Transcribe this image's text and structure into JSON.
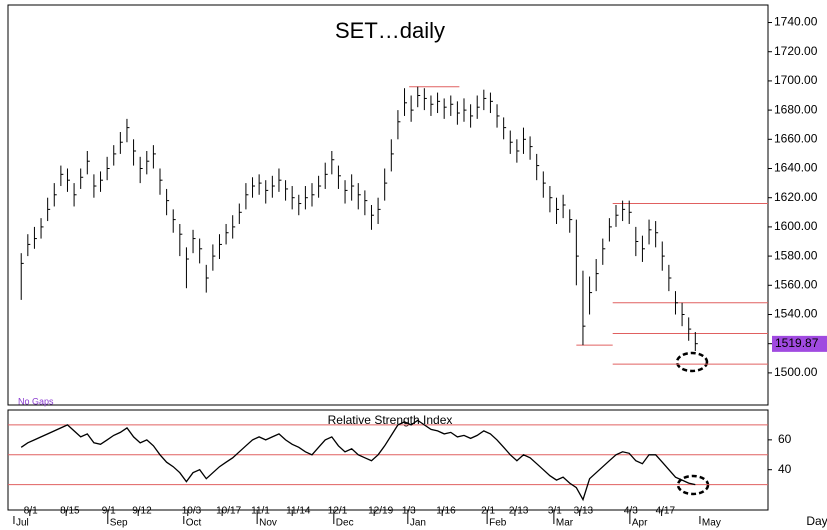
{
  "chart_data": [
    {
      "type": "ohlc",
      "title": "SET…daily",
      "note": "No Gaps",
      "color": "#000000",
      "level_color": "#e06060",
      "xlim": [
        -2,
        113
      ],
      "ylim": [
        1478,
        1752
      ],
      "yticks": [
        {
          "value": 1500,
          "label": "1500.00"
        },
        {
          "value": 1520,
          "label": "1520.00"
        },
        {
          "value": 1540,
          "label": "1540.00"
        },
        {
          "value": 1560,
          "label": "1560.00"
        },
        {
          "value": 1580,
          "label": "1580.00"
        },
        {
          "value": 1600,
          "label": "1600.00"
        },
        {
          "value": 1620,
          "label": "1620.00"
        },
        {
          "value": 1640,
          "label": "1640.00"
        },
        {
          "value": 1660,
          "label": "1660.00"
        },
        {
          "value": 1680,
          "label": "1680.00"
        },
        {
          "value": 1700,
          "label": "1700.00"
        },
        {
          "value": 1720,
          "label": "1720.00"
        },
        {
          "value": 1740,
          "label": "1740.00"
        }
      ],
      "last": 1519.87,
      "levels": [
        {
          "y": 1696,
          "x0": 58.7,
          "x1": 66.3
        },
        {
          "y": 1616,
          "x0": 89.5,
          "x1": 113
        },
        {
          "y": 1548,
          "x0": 89.5,
          "x1": 113
        },
        {
          "y": 1527,
          "x0": 89.5,
          "x1": 113
        },
        {
          "y": 1506,
          "x0": 89.5,
          "x1": 113
        },
        {
          "y": 1519,
          "x0": 84,
          "x1": 89.5
        }
      ],
      "high": [
        1582,
        1595,
        1600,
        1606,
        1620,
        1630,
        1642,
        1640,
        1630,
        1640,
        1652,
        1636,
        1638,
        1648,
        1656,
        1665,
        1674,
        1660,
        1648,
        1652,
        1656,
        1640,
        1626,
        1612,
        1602,
        1586,
        1598,
        1592,
        1574,
        1588,
        1595,
        1602,
        1608,
        1616,
        1630,
        1634,
        1636,
        1632,
        1635,
        1640,
        1632,
        1628,
        1622,
        1628,
        1630,
        1635,
        1644,
        1652,
        1642,
        1632,
        1636,
        1630,
        1625,
        1615,
        1620,
        1640,
        1660,
        1680,
        1695,
        1690,
        1696,
        1695,
        1690,
        1692,
        1688,
        1690,
        1686,
        1688,
        1684,
        1690,
        1694,
        1692,
        1684,
        1675,
        1666,
        1660,
        1668,
        1662,
        1650,
        1638,
        1628,
        1620,
        1622,
        1612,
        1605,
        1570,
        1566,
        1578,
        1592,
        1606,
        1615,
        1618,
        1618,
        1600,
        1594,
        1605,
        1604,
        1590,
        1574,
        1556,
        1548,
        1538,
        1528
      ],
      "low": [
        1550,
        1580,
        1585,
        1592,
        1604,
        1614,
        1628,
        1624,
        1614,
        1626,
        1636,
        1620,
        1624,
        1632,
        1642,
        1650,
        1658,
        1642,
        1630,
        1636,
        1640,
        1622,
        1608,
        1596,
        1580,
        1558,
        1582,
        1575,
        1555,
        1570,
        1578,
        1588,
        1592,
        1602,
        1612,
        1620,
        1622,
        1616,
        1620,
        1624,
        1618,
        1612,
        1608,
        1612,
        1614,
        1620,
        1626,
        1636,
        1626,
        1616,
        1618,
        1612,
        1608,
        1598,
        1602,
        1618,
        1638,
        1660,
        1676,
        1672,
        1682,
        1680,
        1676,
        1678,
        1674,
        1676,
        1670,
        1672,
        1668,
        1674,
        1680,
        1678,
        1668,
        1660,
        1650,
        1644,
        1650,
        1646,
        1632,
        1620,
        1610,
        1602,
        1606,
        1596,
        1560,
        1519,
        1540,
        1556,
        1574,
        1590,
        1600,
        1604,
        1602,
        1580,
        1576,
        1588,
        1586,
        1570,
        1556,
        1540,
        1532,
        1522,
        1515
      ],
      "close": [
        1575,
        1588,
        1592,
        1600,
        1612,
        1622,
        1636,
        1632,
        1622,
        1634,
        1645,
        1628,
        1632,
        1640,
        1650,
        1658,
        1668,
        1652,
        1640,
        1645,
        1650,
        1632,
        1618,
        1605,
        1595,
        1578,
        1592,
        1585,
        1565,
        1580,
        1588,
        1596,
        1600,
        1610,
        1622,
        1628,
        1630,
        1625,
        1628,
        1632,
        1626,
        1620,
        1616,
        1620,
        1622,
        1628,
        1636,
        1646,
        1635,
        1625,
        1628,
        1622,
        1618,
        1608,
        1612,
        1630,
        1650,
        1672,
        1685,
        1680,
        1690,
        1688,
        1684,
        1686,
        1682,
        1684,
        1678,
        1680,
        1676,
        1682,
        1688,
        1686,
        1676,
        1668,
        1658,
        1652,
        1660,
        1655,
        1642,
        1630,
        1620,
        1612,
        1615,
        1605,
        1580,
        1532,
        1555,
        1568,
        1585,
        1600,
        1608,
        1612,
        1610,
        1590,
        1585,
        1598,
        1596,
        1580,
        1565,
        1548,
        1540,
        1530,
        1520
      ]
    },
    {
      "type": "line",
      "title": "Relative Strength Index",
      "color": "#000000",
      "level_color": "#e06060",
      "label_color": "#2a8a2a",
      "xlim": [
        -2,
        113
      ],
      "ylim": [
        13,
        80
      ],
      "yticks": [
        40,
        60
      ],
      "levels": [
        30,
        50,
        70
      ],
      "values": [
        55,
        58,
        60,
        62,
        64,
        66,
        68,
        70,
        66,
        62,
        64,
        58,
        57,
        60,
        63,
        65,
        68,
        62,
        58,
        60,
        56,
        50,
        45,
        42,
        38,
        32,
        38,
        40,
        34,
        38,
        42,
        45,
        48,
        52,
        56,
        60,
        62,
        60,
        62,
        64,
        60,
        57,
        55,
        52,
        50,
        55,
        60,
        62,
        56,
        52,
        54,
        50,
        48,
        46,
        50,
        56,
        63,
        70,
        72,
        70,
        73,
        70,
        67,
        66,
        64,
        65,
        62,
        63,
        61,
        63,
        66,
        64,
        60,
        55,
        50,
        46,
        50,
        48,
        44,
        40,
        36,
        33,
        35,
        31,
        28,
        20,
        34,
        38,
        42,
        46,
        50,
        52,
        51,
        46,
        44,
        50,
        50,
        45,
        40,
        35,
        33,
        31,
        30
      ],
      "xticks": [
        {
          "value": 1.3,
          "label": "8/1"
        },
        {
          "value": 6.8,
          "label": "8/15"
        },
        {
          "value": 13.1,
          "label": "9/1"
        },
        {
          "value": 17.7,
          "label": "9/12"
        },
        {
          "value": 25.2,
          "label": "10/3"
        },
        {
          "value": 30.4,
          "label": "10/17"
        },
        {
          "value": 35.7,
          "label": "11/1"
        },
        {
          "value": 41.0,
          "label": "11/14"
        },
        {
          "value": 47.3,
          "label": "12/1"
        },
        {
          "value": 53.4,
          "label": "12/19"
        },
        {
          "value": 58.5,
          "label": "1/3"
        },
        {
          "value": 63.7,
          "label": "1/16"
        },
        {
          "value": 70.5,
          "label": "2/1"
        },
        {
          "value": 74.7,
          "label": "2/13"
        },
        {
          "value": 80.6,
          "label": "3/1"
        },
        {
          "value": 84.5,
          "label": "3/13"
        },
        {
          "value": 92.1,
          "label": "4/3"
        },
        {
          "value": 96.9,
          "label": "4/17"
        }
      ],
      "months": [
        {
          "value": -1.1,
          "label": "Jul"
        },
        {
          "value": 13.1,
          "label": "Sep"
        },
        {
          "value": 24.6,
          "label": "Oct"
        },
        {
          "value": 35.7,
          "label": "Nov"
        },
        {
          "value": 47.3,
          "label": "Dec"
        },
        {
          "value": 58.5,
          "label": "Jan"
        },
        {
          "value": 70.5,
          "label": "Feb"
        },
        {
          "value": 80.6,
          "label": "Mar"
        },
        {
          "value": 92.1,
          "label": "Apr"
        },
        {
          "value": 102.7,
          "label": "May"
        }
      ],
      "xlabel": "Day"
    }
  ]
}
